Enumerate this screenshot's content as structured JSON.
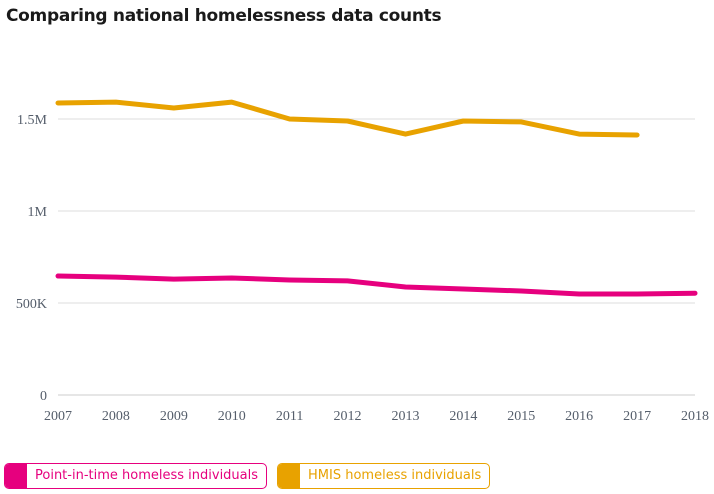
{
  "header": {
    "title": "Comparing national homelessness data counts"
  },
  "colors": {
    "pit": "#e6007e",
    "hmis": "#e8a200",
    "grid": "#dddddd",
    "tick": "#555e6b"
  },
  "chart_data": {
    "type": "line",
    "title": "Comparing national homelessness data counts",
    "xlabel": "",
    "ylabel": "",
    "x": [
      "2007",
      "2008",
      "2009",
      "2010",
      "2011",
      "2012",
      "2013",
      "2014",
      "2015",
      "2016",
      "2017",
      "2018"
    ],
    "ylim": [
      0,
      1750000
    ],
    "yticks": [
      0,
      500000,
      1000000,
      1500000
    ],
    "ytick_labels": [
      "0",
      "500K",
      "1M",
      "1.5M"
    ],
    "grid": true,
    "legend_position": "bottom-left",
    "series": [
      {
        "name": "Point-in-time homeless individuals",
        "color": "#e6007e",
        "values": [
          647000,
          641000,
          630000,
          636000,
          625000,
          620000,
          587000,
          576000,
          565000,
          549000,
          549000,
          553000
        ]
      },
      {
        "name": "HMIS homeless individuals",
        "color": "#e8a200",
        "values": [
          1587000,
          1592000,
          1560000,
          1592000,
          1500000,
          1489000,
          1418000,
          1489000,
          1484000,
          1418000,
          1413000,
          null
        ]
      }
    ]
  },
  "legend": {
    "items": [
      {
        "label": "Point-in-time homeless individuals"
      },
      {
        "label": "HMIS homeless individuals"
      }
    ]
  }
}
